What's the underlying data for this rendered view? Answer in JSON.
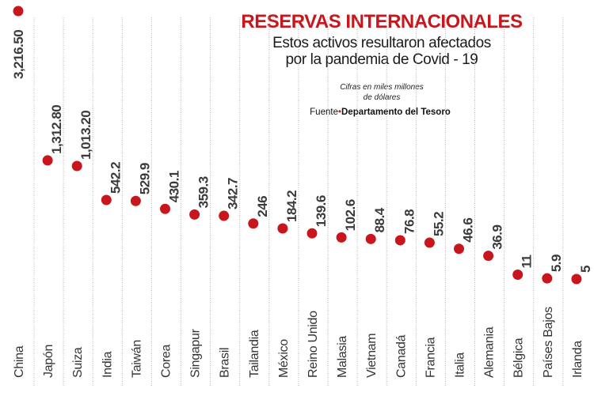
{
  "chart_data": {
    "type": "scatter",
    "title": "RESERVAS INTERNACIONALES",
    "subtitle": [
      "Estos activos resultaron afectados",
      "por la pandemia de Covid - 19"
    ],
    "units_note": [
      "Cifras en miles millones",
      "de dólares"
    ],
    "source_label": "Fuente",
    "source_name": "Departamento del Tesoro",
    "categories": [
      "China",
      "Japón",
      "Suiza",
      "India",
      "Taiwán",
      "Corea",
      "Singapur",
      "Brasil",
      "Tailandia",
      "México",
      "Reino Unido",
      "Malasia",
      "Vietnam",
      "Canadá",
      "Francia",
      "Italia",
      "Alemania",
      "Bélgica",
      "Países Bajos",
      "Irlanda"
    ],
    "values": [
      3216.5,
      1312.8,
      1013.2,
      542.2,
      529.9,
      430.1,
      359.3,
      342.7,
      246,
      184.2,
      139.6,
      102.6,
      88.4,
      76.8,
      55.2,
      46.6,
      36.9,
      11,
      5.9,
      5
    ],
    "value_labels": [
      "3,216.50",
      "1,312.80",
      "1,013.20",
      "542.2",
      "529.9",
      "430.1",
      "359.3",
      "342.7",
      "246",
      "184.2",
      "139.6",
      "102.6",
      "88.4",
      "76.8",
      "55.2",
      "46.6",
      "36.9",
      "11",
      "5.9",
      "5"
    ],
    "xlabel": "",
    "ylabel": "",
    "grid": false,
    "colors": {
      "dot": "#c8161d",
      "title": "#c8161d",
      "value_text": "#3a3a3a",
      "separator": "#b5b5b5"
    }
  }
}
